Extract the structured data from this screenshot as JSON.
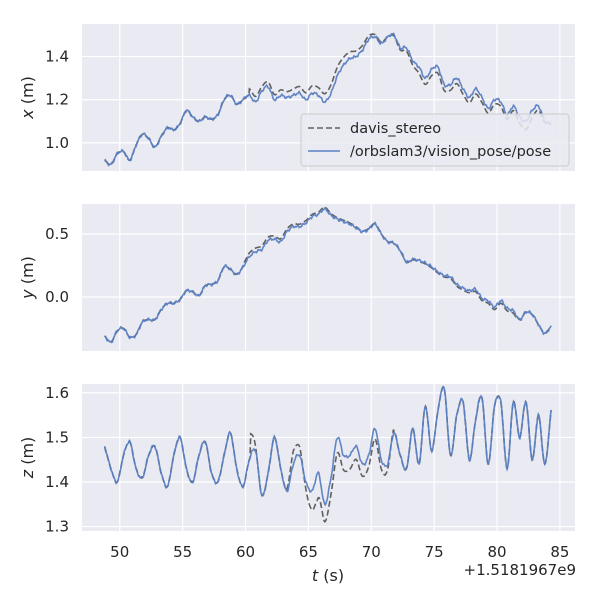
{
  "chart_data": {
    "type": "line",
    "shared_x": {
      "label_var": "t",
      "label_unit": " (s)",
      "ticks": [
        50,
        55,
        60,
        65,
        70,
        75,
        80,
        85
      ],
      "range": [
        47.0,
        86.2
      ],
      "offset_text": "+1.5181967e9"
    },
    "legend": {
      "placement": "lower-right of top panel",
      "entries": [
        {
          "label": "davis_stereo",
          "color": "#606060",
          "dash": true
        },
        {
          "label": "/orbslam3/vision_pose/pose",
          "color": "#5a7fc2",
          "dash": false
        }
      ]
    },
    "colors": {
      "background": "#eaeaf2",
      "grid": "#ffffff",
      "davis": "#606060",
      "orbslam": "#5a7fc2"
    },
    "panels": [
      {
        "ylabel_var": "x",
        "ylabel_unit": " (m)",
        "ylim": [
          0.87,
          1.55
        ],
        "yticks": [
          1.0,
          1.2,
          1.4
        ],
        "ytick_labels": [
          "1.0",
          "1.2",
          "1.4"
        ],
        "base": [
          [
            48.8,
            0.92
          ],
          [
            49.3,
            0.9
          ],
          [
            49.8,
            0.95
          ],
          [
            50.3,
            0.96
          ],
          [
            50.8,
            0.92
          ],
          [
            51.3,
            0.99
          ],
          [
            51.8,
            1.04
          ],
          [
            52.3,
            1.02
          ],
          [
            52.8,
            0.98
          ],
          [
            53.3,
            1.03
          ],
          [
            53.8,
            1.07
          ],
          [
            54.3,
            1.06
          ],
          [
            54.8,
            1.09
          ],
          [
            55.3,
            1.15
          ],
          [
            55.8,
            1.12
          ],
          [
            56.3,
            1.1
          ],
          [
            56.8,
            1.12
          ],
          [
            57.3,
            1.11
          ],
          [
            57.8,
            1.13
          ],
          [
            58.3,
            1.2
          ],
          [
            58.8,
            1.22
          ],
          [
            59.3,
            1.18
          ],
          [
            59.8,
            1.2
          ],
          [
            60.3,
            1.22
          ],
          [
            60.8,
            1.19
          ],
          [
            61.3,
            1.24
          ],
          [
            61.8,
            1.26
          ],
          [
            62.3,
            1.2
          ],
          [
            62.8,
            1.22
          ],
          [
            63.3,
            1.21
          ],
          [
            63.8,
            1.22
          ],
          [
            64.3,
            1.23
          ],
          [
            64.8,
            1.2
          ],
          [
            65.3,
            1.23
          ],
          [
            65.8,
            1.22
          ],
          [
            66.3,
            1.19
          ],
          [
            66.8,
            1.23
          ],
          [
            67.3,
            1.31
          ],
          [
            67.8,
            1.36
          ],
          [
            68.3,
            1.39
          ],
          [
            68.8,
            1.4
          ],
          [
            69.3,
            1.43
          ],
          [
            69.8,
            1.48
          ],
          [
            70.3,
            1.49
          ],
          [
            70.8,
            1.46
          ],
          [
            71.3,
            1.49
          ],
          [
            71.8,
            1.5
          ],
          [
            72.3,
            1.44
          ],
          [
            72.8,
            1.44
          ],
          [
            73.3,
            1.38
          ],
          [
            73.8,
            1.35
          ],
          [
            74.3,
            1.3
          ],
          [
            74.8,
            1.34
          ],
          [
            75.3,
            1.35
          ],
          [
            75.8,
            1.27
          ],
          [
            76.3,
            1.27
          ],
          [
            76.8,
            1.3
          ],
          [
            77.3,
            1.25
          ],
          [
            77.8,
            1.21
          ],
          [
            78.3,
            1.25
          ],
          [
            78.8,
            1.21
          ],
          [
            79.3,
            1.16
          ],
          [
            79.8,
            1.2
          ],
          [
            80.3,
            1.19
          ],
          [
            80.8,
            1.13
          ],
          [
            81.3,
            1.17
          ],
          [
            81.8,
            1.12
          ],
          [
            82.3,
            1.1
          ],
          [
            82.8,
            1.15
          ],
          [
            83.3,
            1.17
          ],
          [
            83.8,
            1.1
          ],
          [
            84.3,
            1.09
          ]
        ],
        "davis_delta": [
          [
            60.3,
            0.03
          ],
          [
            61.3,
            0.02
          ],
          [
            67.0,
            0.04
          ],
          [
            67.4,
            0.04
          ],
          [
            73.3,
            -0.02
          ],
          [
            73.9,
            -0.03
          ],
          [
            80.9,
            -0.02
          ],
          [
            81.3,
            -0.02
          ],
          [
            82.4,
            -0.04
          ],
          [
            82.9,
            -0.03
          ],
          [
            84.0,
            0.0
          ]
        ],
        "orb_end": 84.3
      },
      {
        "ylabel_var": "y",
        "ylabel_unit": " (m)",
        "ylim": [
          -0.43,
          0.74
        ],
        "yticks": [
          0.0,
          0.5
        ],
        "ytick_labels": [
          "0.0",
          "0.5"
        ],
        "base": [
          [
            48.8,
            -0.31
          ],
          [
            49.3,
            -0.36
          ],
          [
            49.8,
            -0.27
          ],
          [
            50.3,
            -0.25
          ],
          [
            50.8,
            -0.32
          ],
          [
            51.3,
            -0.3
          ],
          [
            51.8,
            -0.2
          ],
          [
            52.3,
            -0.18
          ],
          [
            52.8,
            -0.18
          ],
          [
            53.3,
            -0.1
          ],
          [
            53.8,
            -0.05
          ],
          [
            54.3,
            -0.05
          ],
          [
            54.8,
            -0.02
          ],
          [
            55.3,
            0.05
          ],
          [
            55.8,
            0.04
          ],
          [
            56.3,
            0.01
          ],
          [
            56.8,
            0.09
          ],
          [
            57.3,
            0.1
          ],
          [
            57.8,
            0.13
          ],
          [
            58.3,
            0.24
          ],
          [
            58.8,
            0.22
          ],
          [
            59.3,
            0.18
          ],
          [
            59.8,
            0.24
          ],
          [
            60.3,
            0.32
          ],
          [
            60.8,
            0.36
          ],
          [
            61.3,
            0.38
          ],
          [
            61.8,
            0.45
          ],
          [
            62.3,
            0.46
          ],
          [
            62.8,
            0.44
          ],
          [
            63.3,
            0.52
          ],
          [
            63.8,
            0.56
          ],
          [
            64.3,
            0.56
          ],
          [
            64.8,
            0.59
          ],
          [
            65.3,
            0.64
          ],
          [
            65.8,
            0.66
          ],
          [
            66.3,
            0.7
          ],
          [
            66.8,
            0.65
          ],
          [
            67.3,
            0.62
          ],
          [
            67.8,
            0.6
          ],
          [
            68.3,
            0.58
          ],
          [
            68.8,
            0.55
          ],
          [
            69.3,
            0.52
          ],
          [
            69.8,
            0.54
          ],
          [
            70.3,
            0.58
          ],
          [
            70.8,
            0.5
          ],
          [
            71.3,
            0.44
          ],
          [
            71.8,
            0.43
          ],
          [
            72.3,
            0.37
          ],
          [
            72.8,
            0.28
          ],
          [
            73.3,
            0.3
          ],
          [
            73.8,
            0.29
          ],
          [
            74.3,
            0.27
          ],
          [
            74.8,
            0.24
          ],
          [
            75.3,
            0.2
          ],
          [
            75.8,
            0.17
          ],
          [
            76.3,
            0.16
          ],
          [
            76.8,
            0.1
          ],
          [
            77.3,
            0.07
          ],
          [
            77.8,
            0.05
          ],
          [
            78.3,
            0.06
          ],
          [
            78.8,
            -0.01
          ],
          [
            79.3,
            -0.03
          ],
          [
            79.8,
            -0.08
          ],
          [
            80.3,
            -0.03
          ],
          [
            80.8,
            -0.09
          ],
          [
            81.3,
            -0.11
          ],
          [
            81.8,
            -0.18
          ],
          [
            82.3,
            -0.12
          ],
          [
            82.8,
            -0.14
          ],
          [
            83.3,
            -0.22
          ],
          [
            83.8,
            -0.29
          ],
          [
            84.3,
            -0.23
          ]
        ],
        "davis_delta": [
          [
            59.9,
            0.02
          ],
          [
            60.3,
            0.03
          ],
          [
            79.2,
            -0.02
          ],
          [
            81.5,
            -0.02
          ]
        ],
        "orb_end": 84.3
      },
      {
        "ylabel_var": "z",
        "ylabel_unit": " (m)",
        "ylim": [
          1.29,
          1.62
        ],
        "yticks": [
          1.3,
          1.4,
          1.5,
          1.6
        ],
        "ytick_labels": [
          "1.3",
          "1.4",
          "1.5",
          "1.6"
        ],
        "base": [
          [
            48.8,
            1.48
          ],
          [
            49.3,
            1.43
          ],
          [
            49.8,
            1.4
          ],
          [
            50.3,
            1.46
          ],
          [
            50.8,
            1.49
          ],
          [
            51.3,
            1.43
          ],
          [
            51.8,
            1.41
          ],
          [
            52.3,
            1.46
          ],
          [
            52.8,
            1.48
          ],
          [
            53.3,
            1.42
          ],
          [
            53.8,
            1.39
          ],
          [
            54.3,
            1.46
          ],
          [
            54.8,
            1.5
          ],
          [
            55.3,
            1.43
          ],
          [
            55.8,
            1.4
          ],
          [
            56.3,
            1.46
          ],
          [
            56.8,
            1.49
          ],
          [
            57.3,
            1.42
          ],
          [
            57.8,
            1.4
          ],
          [
            58.3,
            1.46
          ],
          [
            58.8,
            1.51
          ],
          [
            59.3,
            1.43
          ],
          [
            59.8,
            1.39
          ],
          [
            60.3,
            1.45
          ],
          [
            60.8,
            1.47
          ],
          [
            61.3,
            1.37
          ],
          [
            61.8,
            1.42
          ],
          [
            62.3,
            1.5
          ],
          [
            62.8,
            1.43
          ],
          [
            63.3,
            1.38
          ],
          [
            63.8,
            1.44
          ],
          [
            64.3,
            1.46
          ],
          [
            64.8,
            1.4
          ],
          [
            65.3,
            1.38
          ],
          [
            65.8,
            1.42
          ],
          [
            66.3,
            1.35
          ],
          [
            66.8,
            1.41
          ],
          [
            67.3,
            1.5
          ],
          [
            67.8,
            1.46
          ],
          [
            68.3,
            1.46
          ],
          [
            68.8,
            1.48
          ],
          [
            69.3,
            1.44
          ],
          [
            69.8,
            1.46
          ],
          [
            70.3,
            1.52
          ],
          [
            70.8,
            1.45
          ],
          [
            71.3,
            1.44
          ],
          [
            71.8,
            1.51
          ],
          [
            72.3,
            1.46
          ],
          [
            72.8,
            1.43
          ],
          [
            73.3,
            1.52
          ],
          [
            73.8,
            1.44
          ],
          [
            74.3,
            1.57
          ],
          [
            74.8,
            1.47
          ],
          [
            75.3,
            1.56
          ],
          [
            75.8,
            1.61
          ],
          [
            76.3,
            1.46
          ],
          [
            76.8,
            1.55
          ],
          [
            77.3,
            1.58
          ],
          [
            77.8,
            1.45
          ],
          [
            78.3,
            1.54
          ],
          [
            78.8,
            1.59
          ],
          [
            79.3,
            1.44
          ],
          [
            79.8,
            1.57
          ],
          [
            80.3,
            1.58
          ],
          [
            80.8,
            1.43
          ],
          [
            81.3,
            1.58
          ],
          [
            81.8,
            1.5
          ],
          [
            82.3,
            1.58
          ],
          [
            82.8,
            1.45
          ],
          [
            83.3,
            1.55
          ],
          [
            83.8,
            1.44
          ],
          [
            84.3,
            1.56
          ]
        ],
        "davis_delta": [
          [
            60.4,
            0.05
          ],
          [
            60.9,
            0.0
          ],
          [
            63.2,
            0.0
          ],
          [
            63.8,
            0.03
          ],
          [
            64.3,
            0.02
          ],
          [
            65.0,
            -0.03
          ],
          [
            65.7,
            -0.06
          ],
          [
            66.1,
            -0.04
          ],
          [
            71.1,
            -0.02
          ],
          [
            71.8,
            0.01
          ]
        ],
        "orb_end": 84.3
      }
    ]
  }
}
